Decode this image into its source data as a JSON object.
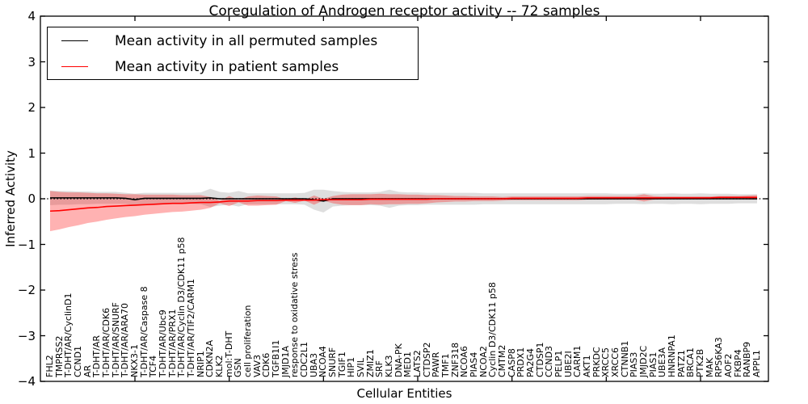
{
  "title": "Coregulation of Androgen receptor activity -- 72 samples",
  "legend": {
    "entries": [
      {
        "label": "Mean activity in all permuted samples",
        "color": "#000000"
      },
      {
        "label": "Mean activity in patient samples",
        "color": "#ff0000"
      }
    ],
    "position": "upper left"
  },
  "chart_data": {
    "type": "line",
    "title": "Coregulation of Androgen receptor activity -- 72 samples",
    "xlabel": "Cellular Entities",
    "ylabel": "Inferred Activity",
    "ylim": [
      -4,
      4
    ],
    "yticks": [
      4,
      3,
      2,
      1,
      0,
      -1,
      -2,
      -3,
      -4
    ],
    "ytick_labels": [
      "4",
      "3",
      "2",
      "1",
      "0",
      "−1",
      "−2",
      "−3",
      "−4"
    ],
    "grid": false,
    "zero_line": "dotted",
    "legend_position": "upper left",
    "categories": [
      "FHL2",
      "TMPRSS2",
      "T-DHT/AR/CyclinD1",
      "CCND1",
      "AR",
      "T-DHT/AR",
      "T-DHT/AR/CDK6",
      "T-DHT/AR/SNURF",
      "T-DHT/AR/ARA70",
      "NKX3-1",
      "T-DHT/AR/Caspase 8",
      "TCF4",
      "T-DHT/AR/Ubc9",
      "T-DHT/AR/PRX1",
      "T-DHT/AR/Cyclin D3/CDK11 p58",
      "T-DHT/AR/TIF2/CARM1",
      "NRIP1",
      "CDKN2A",
      "KLK2",
      "mol:T-DHT",
      "GSN",
      "cell proliferation",
      "VAV3",
      "CDK6",
      "TGFB1I1",
      "JMJD1A",
      "response to oxidative stress",
      "CDC2L1",
      "UBA3",
      "NCOA4",
      "SNURF",
      "TGIF1",
      "HIP1",
      "SVIL",
      "ZMIZ1",
      "SRF",
      "KLK3",
      "DNA-PK",
      "MED1",
      "LATS2",
      "CTDSP2",
      "PAWR",
      "TMF1",
      "ZNF318",
      "NCOA6",
      "PIAS4",
      "NCOA2",
      "Cyclin D3/CDK11 p58",
      "CMTM2",
      "CASP8",
      "PRDX1",
      "PA2G4",
      "CTDSP1",
      "CCND3",
      "PELP1",
      "UBE2I",
      "CARM1",
      "AKT1",
      "PRKDC",
      "XRCC5",
      "XRCC6",
      "CTNNB1",
      "PIAS3",
      "JMJD2C",
      "PIAS1",
      "UBE3A",
      "HNRNPA1",
      "PATZ1",
      "BRCA1",
      "PTK2B",
      "MAK",
      "RPS6KA3",
      "AOF2",
      "FKBP4",
      "RANBP9",
      "APPL1"
    ],
    "series": [
      {
        "name": "Mean activity in all permuted samples",
        "color": "#000000",
        "band_color": "#000000",
        "band_opacity": 0.13,
        "values": [
          0.02,
          0.02,
          0.02,
          0.02,
          0.02,
          0.02,
          0.02,
          0.02,
          0.01,
          -0.02,
          0.01,
          0.01,
          0.01,
          0.01,
          0.01,
          0.01,
          0.01,
          0.02,
          0.0,
          0.0,
          0.0,
          0.0,
          0.0,
          0.0,
          0.0,
          0.0,
          0.0,
          0.0,
          -0.02,
          -0.05,
          0.0,
          0.0,
          0.0,
          0.0,
          0.0,
          0.0,
          0.0,
          0.0,
          0.0,
          0.0,
          0.0,
          0.0,
          0.0,
          0.0,
          0.0,
          0.0,
          0.0,
          0.0,
          0.0,
          0.0,
          0.0,
          0.0,
          0.0,
          0.0,
          0.0,
          0.0,
          0.0,
          0.0,
          0.0,
          0.0,
          0.0,
          0.0,
          0.0,
          0.0,
          0.0,
          0.0,
          0.0,
          0.0,
          0.0,
          0.0,
          0.0,
          0.0,
          0.0,
          0.0,
          0.0,
          0.0
        ],
        "std": [
          0.16,
          0.15,
          0.15,
          0.14,
          0.14,
          0.13,
          0.13,
          0.13,
          0.12,
          0.13,
          0.12,
          0.12,
          0.12,
          0.12,
          0.12,
          0.12,
          0.13,
          0.2,
          0.15,
          0.13,
          0.17,
          0.12,
          0.12,
          0.12,
          0.12,
          0.12,
          0.12,
          0.13,
          0.22,
          0.25,
          0.17,
          0.15,
          0.14,
          0.14,
          0.14,
          0.15,
          0.2,
          0.15,
          0.14,
          0.14,
          0.13,
          0.13,
          0.13,
          0.13,
          0.13,
          0.13,
          0.12,
          0.12,
          0.12,
          0.12,
          0.12,
          0.12,
          0.12,
          0.12,
          0.12,
          0.12,
          0.12,
          0.12,
          0.12,
          0.12,
          0.11,
          0.11,
          0.11,
          0.12,
          0.11,
          0.11,
          0.12,
          0.11,
          0.11,
          0.12,
          0.11,
          0.11,
          0.11,
          0.1,
          0.1,
          0.1
        ]
      },
      {
        "name": "Mean activity in patient samples",
        "color": "#ff0000",
        "band_color": "#ff0000",
        "band_opacity": 0.3,
        "values": [
          -0.27,
          -0.26,
          -0.24,
          -0.22,
          -0.2,
          -0.19,
          -0.17,
          -0.16,
          -0.15,
          -0.14,
          -0.13,
          -0.12,
          -0.11,
          -0.1,
          -0.1,
          -0.09,
          -0.08,
          -0.08,
          -0.07,
          -0.05,
          -0.05,
          -0.05,
          -0.04,
          -0.04,
          -0.04,
          -0.03,
          -0.03,
          -0.03,
          -0.03,
          -0.02,
          -0.02,
          -0.02,
          -0.02,
          -0.02,
          -0.01,
          -0.01,
          -0.01,
          -0.01,
          -0.01,
          -0.01,
          -0.01,
          0.0,
          0.0,
          0.0,
          0.0,
          0.0,
          0.0,
          0.0,
          0.0,
          0.01,
          0.01,
          0.01,
          0.01,
          0.01,
          0.01,
          0.01,
          0.01,
          0.02,
          0.02,
          0.02,
          0.02,
          0.02,
          0.02,
          0.02,
          0.02,
          0.02,
          0.02,
          0.02,
          0.02,
          0.02,
          0.02,
          0.03,
          0.03,
          0.03,
          0.03,
          0.03
        ],
        "std": [
          0.44,
          0.41,
          0.38,
          0.36,
          0.33,
          0.31,
          0.29,
          0.27,
          0.25,
          0.24,
          0.22,
          0.21,
          0.2,
          0.19,
          0.18,
          0.17,
          0.16,
          0.12,
          0.03,
          0.11,
          0.03,
          0.1,
          0.11,
          0.1,
          0.09,
          0.02,
          0.06,
          0.01,
          0.1,
          0.02,
          0.08,
          0.11,
          0.12,
          0.12,
          0.11,
          0.12,
          0.11,
          0.11,
          0.1,
          0.1,
          0.09,
          0.08,
          0.07,
          0.06,
          0.06,
          0.05,
          0.05,
          0.05,
          0.04,
          0.04,
          0.04,
          0.04,
          0.04,
          0.04,
          0.04,
          0.04,
          0.04,
          0.04,
          0.04,
          0.04,
          0.04,
          0.04,
          0.04,
          0.08,
          0.04,
          0.03,
          0.03,
          0.03,
          0.03,
          0.03,
          0.03,
          0.03,
          0.03,
          0.03,
          0.04,
          0.05
        ]
      }
    ]
  }
}
